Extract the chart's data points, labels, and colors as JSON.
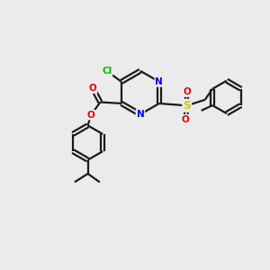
{
  "background_color": "#ebebeb",
  "bond_color": "#1a1a1a",
  "atom_colors": {
    "Cl": "#00bb00",
    "N": "#0000ee",
    "O": "#ee0000",
    "S": "#cccc00",
    "C": "#1a1a1a"
  },
  "figsize": [
    3.0,
    3.0
  ],
  "dpi": 100,
  "xlim": [
    0,
    10
  ],
  "ylim": [
    0,
    10
  ]
}
